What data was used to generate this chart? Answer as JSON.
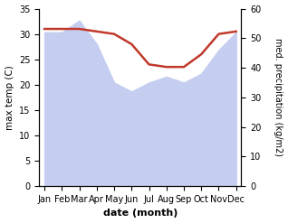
{
  "months": [
    "Jan",
    "Feb",
    "Mar",
    "Apr",
    "May",
    "Jun",
    "Jul",
    "Aug",
    "Sep",
    "Oct",
    "Nov",
    "Dec"
  ],
  "month_x": [
    0,
    1,
    2,
    3,
    4,
    5,
    6,
    7,
    8,
    9,
    10,
    11
  ],
  "temp_max": [
    31.0,
    31.0,
    31.0,
    30.5,
    30.0,
    28.0,
    24.0,
    23.5,
    23.5,
    26.0,
    30.0,
    30.5
  ],
  "precip": [
    52,
    52,
    56,
    48,
    35,
    32,
    35,
    37,
    35,
    38,
    46,
    52
  ],
  "temp_ylim": [
    0,
    35
  ],
  "precip_ylim": [
    0,
    60
  ],
  "temp_yticks": [
    0,
    5,
    10,
    15,
    20,
    25,
    30,
    35
  ],
  "precip_yticks": [
    0,
    10,
    20,
    30,
    40,
    50,
    60
  ],
  "xlabel": "date (month)",
  "ylabel_left": "max temp (C)",
  "ylabel_right": "med. precipitation (kg/m2)",
  "temp_color": "#c0392b",
  "precip_fill_color": "#c5cef0",
  "bg_color": "#ffffff"
}
